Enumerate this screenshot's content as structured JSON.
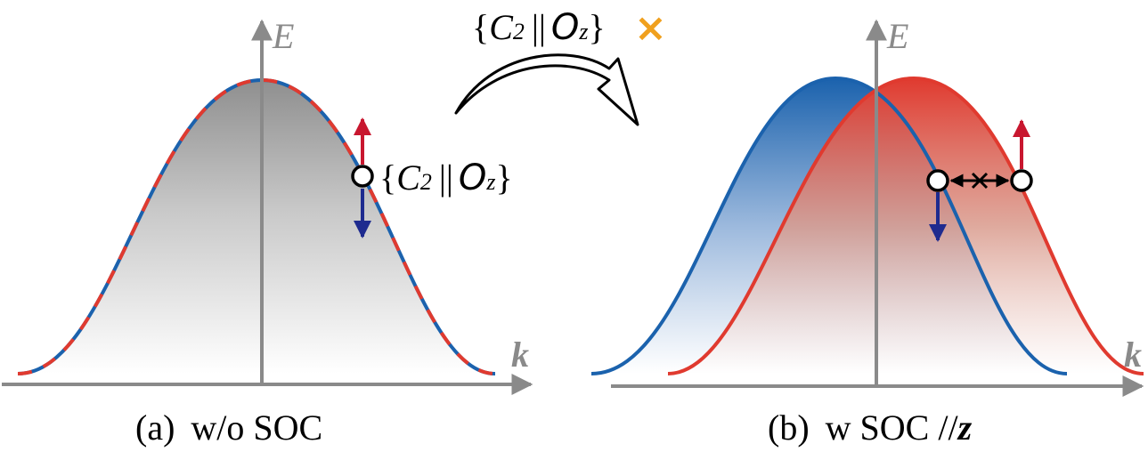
{
  "panel_a": {
    "axis_y": "E",
    "axis_x": "k",
    "symmetry": {
      "open": "{",
      "op": "C",
      "sub": "2",
      "bars": "||",
      "rot": "O",
      "rot_sub": "z",
      "close": "}"
    },
    "caption": {
      "prefix": "(a)",
      "text": "w/o SOC"
    }
  },
  "panel_b": {
    "axis_y": "E",
    "axis_x": "k",
    "caption": {
      "prefix": "(b)",
      "text": "w SOC //",
      "axis": "z"
    }
  },
  "transform": {
    "symmetry": {
      "open": "{",
      "op": "C",
      "sub": "2",
      "bars": "||",
      "rot": "O",
      "rot_sub": "z",
      "close": "}"
    },
    "broken_mark": "×"
  },
  "colors": {
    "axis": "#8a8a8a",
    "spin_up": "#c8172f",
    "spin_down": "#1e2b8f",
    "band_blue": "#1b62ad",
    "band_red": "#e03a2f",
    "broken_mark": "#f0a01e"
  }
}
